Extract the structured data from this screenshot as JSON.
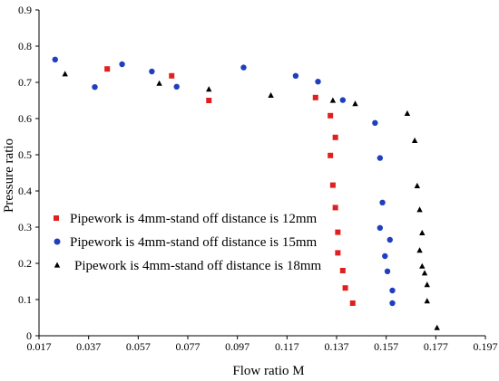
{
  "chart_data": {
    "type": "scatter",
    "xlabel": "Flow ratio M",
    "ylabel": "Pressure ratio",
    "xlim": [
      0.017,
      0.197
    ],
    "ylim": [
      0,
      0.9
    ],
    "x_ticks": [
      "0.017",
      "0.037",
      "0.057",
      "0.077",
      "0.097",
      "0.117",
      "0.137",
      "0.157",
      "0.177",
      "0.197"
    ],
    "y_ticks": [
      "0",
      "0.1",
      "0.2",
      "0.3",
      "0.4",
      "0.5",
      "0.6",
      "0.7",
      "0.8",
      "0.9"
    ],
    "grid": false,
    "legend_position": "center-left",
    "series": [
      {
        "name": "Pipework is 4mm-stand off distance is 12mm",
        "marker": "square",
        "color": "#e02020",
        "points": [
          [
            0.0445,
            0.737
          ],
          [
            0.0705,
            0.718
          ],
          [
            0.0855,
            0.65
          ],
          [
            0.1285,
            0.658
          ],
          [
            0.1345,
            0.608
          ],
          [
            0.1365,
            0.548
          ],
          [
            0.1345,
            0.498
          ],
          [
            0.1355,
            0.416
          ],
          [
            0.1365,
            0.354
          ],
          [
            0.1375,
            0.286
          ],
          [
            0.1375,
            0.229
          ],
          [
            0.1395,
            0.18
          ],
          [
            0.1405,
            0.132
          ],
          [
            0.1435,
            0.09
          ]
        ]
      },
      {
        "name": "Pipework is 4mm-stand off distance is 15mm",
        "marker": "circle",
        "color": "#1f3fbf",
        "points": [
          [
            0.0235,
            0.763
          ],
          [
            0.0395,
            0.687
          ],
          [
            0.0505,
            0.75
          ],
          [
            0.0625,
            0.73
          ],
          [
            0.0725,
            0.688
          ],
          [
            0.0995,
            0.741
          ],
          [
            0.1205,
            0.718
          ],
          [
            0.1295,
            0.702
          ],
          [
            0.1395,
            0.651
          ],
          [
            0.1525,
            0.588
          ],
          [
            0.1545,
            0.491
          ],
          [
            0.1555,
            0.368
          ],
          [
            0.1545,
            0.298
          ],
          [
            0.1585,
            0.265
          ],
          [
            0.1565,
            0.22
          ],
          [
            0.1575,
            0.178
          ],
          [
            0.1595,
            0.125
          ],
          [
            0.1595,
            0.09
          ]
        ]
      },
      {
        "name": "Pipework is 4mm-stand off distance is 18mm",
        "marker": "triangle",
        "color": "#000000",
        "points": [
          [
            0.0275,
            0.723
          ],
          [
            0.0655,
            0.697
          ],
          [
            0.0855,
            0.681
          ],
          [
            0.1105,
            0.664
          ],
          [
            0.1355,
            0.65
          ],
          [
            0.1445,
            0.641
          ],
          [
            0.1655,
            0.614
          ],
          [
            0.1685,
            0.539
          ],
          [
            0.1695,
            0.414
          ],
          [
            0.1705,
            0.348
          ],
          [
            0.1715,
            0.284
          ],
          [
            0.1705,
            0.236
          ],
          [
            0.1715,
            0.192
          ],
          [
            0.1725,
            0.173
          ],
          [
            0.1735,
            0.141
          ],
          [
            0.1735,
            0.096
          ],
          [
            0.1775,
            0.022
          ]
        ]
      }
    ]
  }
}
